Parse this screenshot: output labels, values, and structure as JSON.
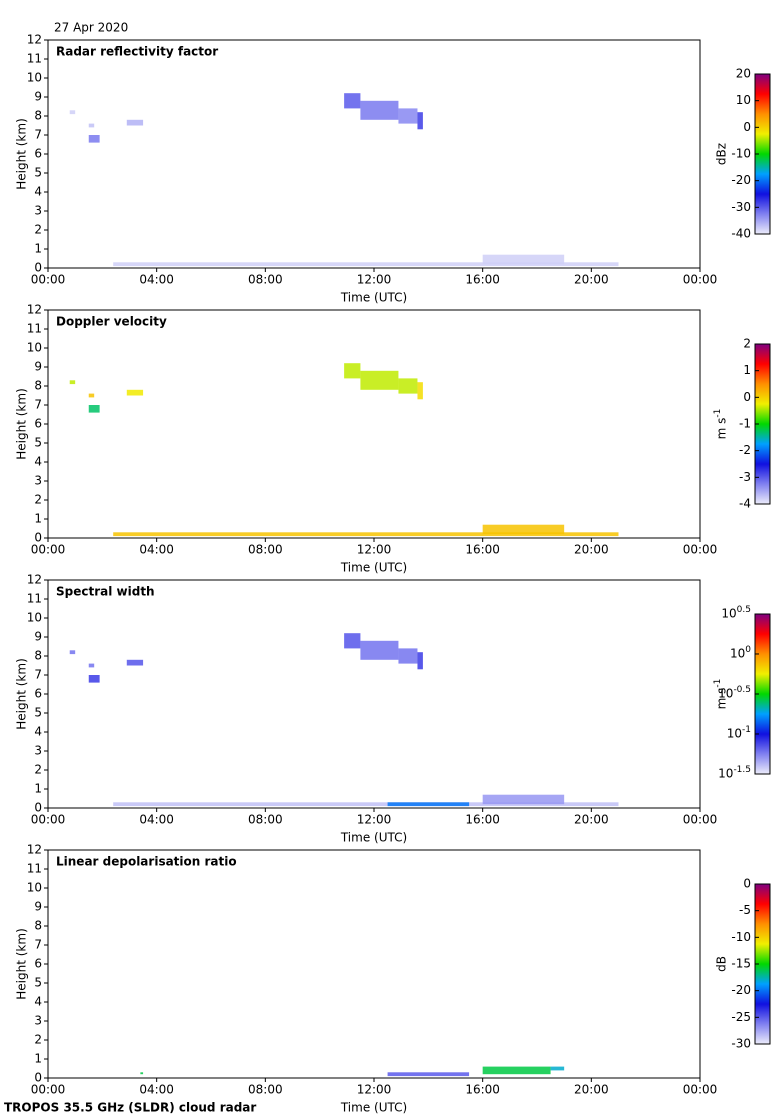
{
  "date": "27 Apr 2020",
  "footer": "TROPOS 35.5 GHz (SLDR) cloud radar",
  "colormap": [
    "#ececfa",
    "#8080f0",
    "#1010e0",
    "#00a0ff",
    "#00d800",
    "#f0f000",
    "#ff9000",
    "#ff0000",
    "#800080"
  ],
  "chart_data": [
    {
      "type": "heatmap",
      "title": "Radar reflectivity factor",
      "xlabel": "Time (UTC)",
      "ylabel": "Height (km)",
      "xlim": [
        0,
        24
      ],
      "xticks": [
        {
          "value": 0,
          "label": "00:00"
        },
        {
          "value": 4,
          "label": "04:00"
        },
        {
          "value": 8,
          "label": "08:00"
        },
        {
          "value": 12,
          "label": "12:00"
        },
        {
          "value": 16,
          "label": "16:00"
        },
        {
          "value": 20,
          "label": "20:00"
        },
        {
          "value": 24,
          "label": "00:00"
        }
      ],
      "ylim": [
        0,
        12
      ],
      "yticks": [
        0,
        1,
        2,
        3,
        4,
        5,
        6,
        7,
        8,
        9,
        10,
        11,
        12
      ],
      "colorbar": {
        "unit": "dBz",
        "clim": [
          -40,
          20
        ],
        "ticks": [
          -40,
          -30,
          -20,
          -10,
          0,
          10,
          20
        ]
      },
      "echoes": [
        {
          "x": [
            0.8,
            1.0
          ],
          "y": [
            8.1,
            8.3
          ],
          "value": -38
        },
        {
          "x": [
            1.5,
            1.9
          ],
          "y": [
            6.6,
            7.0
          ],
          "value": -32
        },
        {
          "x": [
            1.5,
            1.7
          ],
          "y": [
            7.4,
            7.6
          ],
          "value": -37
        },
        {
          "x": [
            2.9,
            3.5
          ],
          "y": [
            7.5,
            7.8
          ],
          "value": -36
        },
        {
          "x": [
            10.9,
            11.5
          ],
          "y": [
            8.4,
            9.2
          ],
          "value": -30
        },
        {
          "x": [
            11.5,
            12.9
          ],
          "y": [
            7.8,
            8.8
          ],
          "value": -32
        },
        {
          "x": [
            12.9,
            13.6
          ],
          "y": [
            7.6,
            8.4
          ],
          "value": -33
        },
        {
          "x": [
            13.6,
            13.8
          ],
          "y": [
            7.3,
            8.2
          ],
          "value": -28
        },
        {
          "x": [
            2.4,
            21.0
          ],
          "y": [
            0.1,
            0.3
          ],
          "value": -38
        },
        {
          "x": [
            16.0,
            19.0
          ],
          "y": [
            0.2,
            0.7
          ],
          "value": -38
        }
      ]
    },
    {
      "type": "heatmap",
      "title": "Doppler velocity",
      "xlabel": "Time (UTC)",
      "ylabel": "Height (km)",
      "xlim": [
        0,
        24
      ],
      "xticks": [
        {
          "value": 0,
          "label": "00:00"
        },
        {
          "value": 4,
          "label": "04:00"
        },
        {
          "value": 8,
          "label": "08:00"
        },
        {
          "value": 12,
          "label": "12:00"
        },
        {
          "value": 16,
          "label": "16:00"
        },
        {
          "value": 20,
          "label": "20:00"
        },
        {
          "value": 24,
          "label": "00:00"
        }
      ],
      "ylim": [
        0,
        12
      ],
      "yticks": [
        0,
        1,
        2,
        3,
        4,
        5,
        6,
        7,
        8,
        9,
        10,
        11,
        12
      ],
      "colorbar": {
        "unit": "m s^-1",
        "clim": [
          -4,
          2
        ],
        "ticks": [
          -4,
          -3,
          -2,
          -1,
          0,
          1,
          2
        ]
      },
      "echoes": [
        {
          "x": [
            0.8,
            1.0
          ],
          "y": [
            8.1,
            8.3
          ],
          "value": -0.4
        },
        {
          "x": [
            1.5,
            1.9
          ],
          "y": [
            6.6,
            7.0
          ],
          "value": -1.3
        },
        {
          "x": [
            1.5,
            1.7
          ],
          "y": [
            7.4,
            7.6
          ],
          "value": 0.1
        },
        {
          "x": [
            2.9,
            3.5
          ],
          "y": [
            7.5,
            7.8
          ],
          "value": -0.2
        },
        {
          "x": [
            10.9,
            11.5
          ],
          "y": [
            8.4,
            9.2
          ],
          "value": -0.4
        },
        {
          "x": [
            11.5,
            12.9
          ],
          "y": [
            7.8,
            8.8
          ],
          "value": -0.4
        },
        {
          "x": [
            12.9,
            13.6
          ],
          "y": [
            7.6,
            8.4
          ],
          "value": -0.4
        },
        {
          "x": [
            13.6,
            13.8
          ],
          "y": [
            7.3,
            8.2
          ],
          "value": -0.1
        },
        {
          "x": [
            2.4,
            21.0
          ],
          "y": [
            0.1,
            0.3
          ],
          "value": 0.1
        },
        {
          "x": [
            16.0,
            19.0
          ],
          "y": [
            0.2,
            0.7
          ],
          "value": 0.1
        }
      ]
    },
    {
      "type": "heatmap",
      "title": "Spectral width",
      "xlabel": "Time (UTC)",
      "ylabel": "Height (km)",
      "xlim": [
        0,
        24
      ],
      "xticks": [
        {
          "value": 0,
          "label": "00:00"
        },
        {
          "value": 4,
          "label": "04:00"
        },
        {
          "value": 8,
          "label": "08:00"
        },
        {
          "value": 12,
          "label": "12:00"
        },
        {
          "value": 16,
          "label": "16:00"
        },
        {
          "value": 20,
          "label": "20:00"
        },
        {
          "value": 24,
          "label": "00:00"
        }
      ],
      "ylim": [
        0,
        12
      ],
      "yticks": [
        0,
        1,
        2,
        3,
        4,
        5,
        6,
        7,
        8,
        9,
        10,
        11,
        12
      ],
      "colorbar": {
        "unit": "m s^-1",
        "log_scale": true,
        "clim": [
          0.0316,
          3.16
        ],
        "ticks": [
          {
            "value": 0.0316,
            "label": "10^-1.5"
          },
          {
            "value": 0.1,
            "label": "10^-1"
          },
          {
            "value": 0.316,
            "label": "10^-0.5"
          },
          {
            "value": 1,
            "label": "10^0"
          },
          {
            "value": 3.16,
            "label": "10^0.5"
          }
        ]
      },
      "echoes": [
        {
          "x": [
            0.8,
            1.0
          ],
          "y": [
            8.1,
            8.3
          ],
          "value": 0.06
        },
        {
          "x": [
            1.5,
            1.9
          ],
          "y": [
            6.6,
            7.0
          ],
          "value": 0.08
        },
        {
          "x": [
            1.5,
            1.7
          ],
          "y": [
            7.4,
            7.6
          ],
          "value": 0.06
        },
        {
          "x": [
            2.9,
            3.5
          ],
          "y": [
            7.5,
            7.8
          ],
          "value": 0.07
        },
        {
          "x": [
            10.9,
            11.5
          ],
          "y": [
            8.4,
            9.2
          ],
          "value": 0.07
        },
        {
          "x": [
            11.5,
            12.9
          ],
          "y": [
            7.8,
            8.8
          ],
          "value": 0.06
        },
        {
          "x": [
            12.9,
            13.6
          ],
          "y": [
            7.6,
            8.4
          ],
          "value": 0.06
        },
        {
          "x": [
            13.6,
            13.8
          ],
          "y": [
            7.3,
            8.2
          ],
          "value": 0.08
        },
        {
          "x": [
            2.4,
            21.0
          ],
          "y": [
            0.1,
            0.3
          ],
          "value": 0.04
        },
        {
          "x": [
            12.5,
            15.5
          ],
          "y": [
            0.1,
            0.3
          ],
          "value": 0.15
        },
        {
          "x": [
            16.0,
            19.0
          ],
          "y": [
            0.2,
            0.7
          ],
          "value": 0.05
        }
      ]
    },
    {
      "type": "heatmap",
      "title": "Linear depolarisation ratio",
      "xlabel": "Time (UTC)",
      "ylabel": "Height (km)",
      "xlim": [
        0,
        24
      ],
      "xticks": [
        {
          "value": 0,
          "label": "00:00"
        },
        {
          "value": 4,
          "label": "04:00"
        },
        {
          "value": 8,
          "label": "08:00"
        },
        {
          "value": 12,
          "label": "12:00"
        },
        {
          "value": 16,
          "label": "16:00"
        },
        {
          "value": 20,
          "label": "20:00"
        },
        {
          "value": 24,
          "label": "00:00"
        }
      ],
      "ylim": [
        0,
        12
      ],
      "yticks": [
        0,
        1,
        2,
        3,
        4,
        5,
        6,
        7,
        8,
        9,
        10,
        11,
        12
      ],
      "colorbar": {
        "unit": "dB",
        "clim": [
          -30,
          0
        ],
        "ticks": [
          -30,
          -25,
          -20,
          -15,
          -10,
          -5,
          0
        ]
      },
      "echoes": [
        {
          "x": [
            3.4,
            3.5
          ],
          "y": [
            0.2,
            0.3
          ],
          "value": -16
        },
        {
          "x": [
            12.5,
            15.5
          ],
          "y": [
            0.1,
            0.3
          ],
          "value": -25
        },
        {
          "x": [
            16.0,
            18.5
          ],
          "y": [
            0.2,
            0.6
          ],
          "value": -16
        },
        {
          "x": [
            18.5,
            19.0
          ],
          "y": [
            0.4,
            0.6
          ],
          "value": -18
        }
      ]
    }
  ]
}
